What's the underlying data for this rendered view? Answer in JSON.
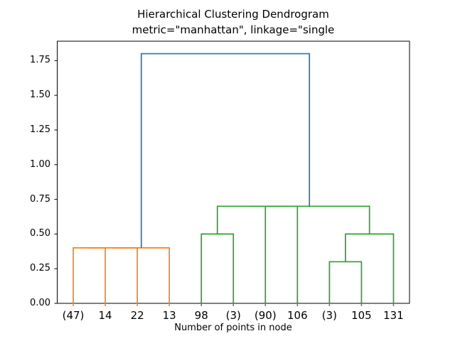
{
  "chart_data": {
    "type": "dendrogram",
    "title": "Hierarchical Clustering Dendrogram",
    "subtitle": "metric=\"manhattan\", linkage=\"single",
    "xlabel": "Number of points in node",
    "ylabel": "",
    "grid": false,
    "legend": null,
    "xlim": [
      0,
      110
    ],
    "ylim": [
      0,
      1.89
    ],
    "yticks": {
      "values": [
        0,
        0.25,
        0.5,
        0.75,
        1.0,
        1.25,
        1.5,
        1.75
      ],
      "labels": [
        "0.00",
        "0.25",
        "0.50",
        "0.75",
        "1.00",
        "1.25",
        "1.50",
        "1.75"
      ]
    },
    "leaves": {
      "labels": [
        "(47)",
        "14",
        "22",
        "13",
        "98",
        "(3)",
        "(90)",
        "106",
        "(3)",
        "105",
        "131"
      ],
      "positions": [
        5,
        15,
        25,
        35,
        45,
        55,
        65,
        75,
        85,
        95,
        105
      ],
      "tick_colors": [
        "#ff7f0e",
        "#ff7f0e",
        "#ff7f0e",
        "#ff7f0e",
        "#2ca02c",
        "#2ca02c",
        "#2ca02c",
        "#2ca02c",
        "#2ca02c",
        "#2ca02c",
        "#2ca02c"
      ]
    },
    "merges": [
      {
        "children": [
          "(47)",
          "14"
        ],
        "height": 0.4,
        "color": "#ff7f0e"
      },
      {
        "children": [
          "[(47)+14]",
          "22"
        ],
        "height": 0.4,
        "color": "#ff7f0e"
      },
      {
        "children": [
          "[(47)+14+22]",
          "13"
        ],
        "height": 0.4,
        "color": "#ff7f0e"
      },
      {
        "children": [
          "98",
          "(3)"
        ],
        "height": 0.5,
        "color": "#2ca02c"
      },
      {
        "children": [
          "(90)",
          "106"
        ],
        "height": 0.7,
        "color": "#2ca02c"
      },
      {
        "children": [
          "[98+(3)]",
          "[(90)+106]"
        ],
        "height": 0.7,
        "color": "#2ca02c"
      },
      {
        "children": [
          "(3)",
          "105"
        ],
        "height": 0.3,
        "color": "#2ca02c"
      },
      {
        "children": [
          "[(3)+105]",
          "131"
        ],
        "height": 0.5,
        "color": "#2ca02c"
      },
      {
        "children": [
          "[98+(3)+(90)+106]",
          "[(3)+105+131]"
        ],
        "height": 0.7,
        "color": "#2ca02c"
      },
      {
        "children": [
          "orange-cluster",
          "green-cluster"
        ],
        "height": 1.8,
        "color": "#1f77b4"
      }
    ],
    "links": [
      {
        "color": "#ff7f0e",
        "points": [
          [
            5,
            0
          ],
          [
            5,
            0.4
          ],
          [
            15,
            0.4
          ],
          [
            15,
            0
          ]
        ]
      },
      {
        "color": "#ff7f0e",
        "points": [
          [
            10,
            0.4
          ],
          [
            10,
            0.4
          ],
          [
            25,
            0.4
          ],
          [
            25,
            0
          ]
        ]
      },
      {
        "color": "#ff7f0e",
        "points": [
          [
            17.5,
            0.4
          ],
          [
            17.5,
            0.4
          ],
          [
            35,
            0.4
          ],
          [
            35,
            0
          ]
        ]
      },
      {
        "color": "#2ca02c",
        "points": [
          [
            45,
            0
          ],
          [
            45,
            0.5
          ],
          [
            55,
            0.5
          ],
          [
            55,
            0
          ]
        ]
      },
      {
        "color": "#2ca02c",
        "points": [
          [
            65,
            0
          ],
          [
            65,
            0.7
          ],
          [
            75,
            0.7
          ],
          [
            75,
            0
          ]
        ]
      },
      {
        "color": "#2ca02c",
        "points": [
          [
            50,
            0.5
          ],
          [
            50,
            0.7
          ],
          [
            70,
            0.7
          ],
          [
            70,
            0.7
          ]
        ]
      },
      {
        "color": "#2ca02c",
        "points": [
          [
            85,
            0
          ],
          [
            85,
            0.3
          ],
          [
            95,
            0.3
          ],
          [
            95,
            0
          ]
        ]
      },
      {
        "color": "#2ca02c",
        "points": [
          [
            90,
            0.3
          ],
          [
            90,
            0.5
          ],
          [
            105,
            0.5
          ],
          [
            105,
            0
          ]
        ]
      },
      {
        "color": "#2ca02c",
        "points": [
          [
            60,
            0.7
          ],
          [
            60,
            0.7
          ],
          [
            97.5,
            0.7
          ],
          [
            97.5,
            0.5
          ]
        ]
      },
      {
        "color": "#1f77b4",
        "points": [
          [
            26.25,
            0.4
          ],
          [
            26.25,
            1.8
          ],
          [
            78.75,
            1.8
          ],
          [
            78.75,
            0.7
          ]
        ]
      }
    ],
    "colors": {
      "above_threshold": "#1f77b4",
      "cluster_1": "#ff7f0e",
      "cluster_2": "#2ca02c",
      "axes": "#000000",
      "background": "#ffffff"
    }
  }
}
